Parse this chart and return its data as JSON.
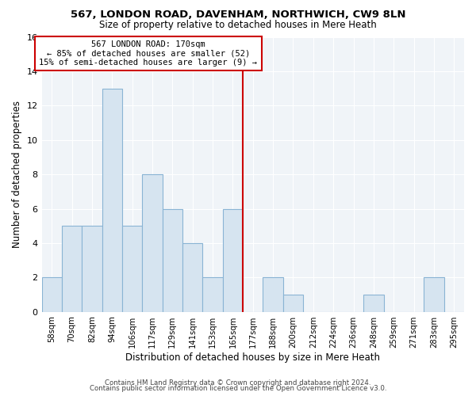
{
  "title": "567, LONDON ROAD, DAVENHAM, NORTHWICH, CW9 8LN",
  "subtitle": "Size of property relative to detached houses in Mere Heath",
  "xlabel": "Distribution of detached houses by size in Mere Heath",
  "ylabel": "Number of detached properties",
  "bar_labels": [
    "58sqm",
    "70sqm",
    "82sqm",
    "94sqm",
    "106sqm",
    "117sqm",
    "129sqm",
    "141sqm",
    "153sqm",
    "165sqm",
    "177sqm",
    "188sqm",
    "200sqm",
    "212sqm",
    "224sqm",
    "236sqm",
    "248sqm",
    "259sqm",
    "271sqm",
    "283sqm",
    "295sqm"
  ],
  "bar_heights": [
    2,
    5,
    5,
    13,
    5,
    8,
    6,
    4,
    2,
    6,
    0,
    2,
    1,
    0,
    0,
    0,
    1,
    0,
    0,
    2,
    0
  ],
  "bar_color": "#d6e4f0",
  "bar_edge_color": "#8ab4d4",
  "reference_line_color": "#cc0000",
  "annotation_title": "567 LONDON ROAD: 170sqm",
  "annotation_line1": "← 85% of detached houses are smaller (52)",
  "annotation_line2": "15% of semi-detached houses are larger (9) →",
  "annotation_box_color": "#ffffff",
  "annotation_box_edge_color": "#cc0000",
  "ylim": [
    0,
    16
  ],
  "yticks": [
    0,
    2,
    4,
    6,
    8,
    10,
    12,
    14,
    16
  ],
  "footer_line1": "Contains HM Land Registry data © Crown copyright and database right 2024.",
  "footer_line2": "Contains public sector information licensed under the Open Government Licence v3.0.",
  "background_color": "#ffffff",
  "plot_bg_color": "#f0f4f8",
  "grid_color": "#ffffff",
  "title_fontsize": 9.5,
  "subtitle_fontsize": 8.5
}
